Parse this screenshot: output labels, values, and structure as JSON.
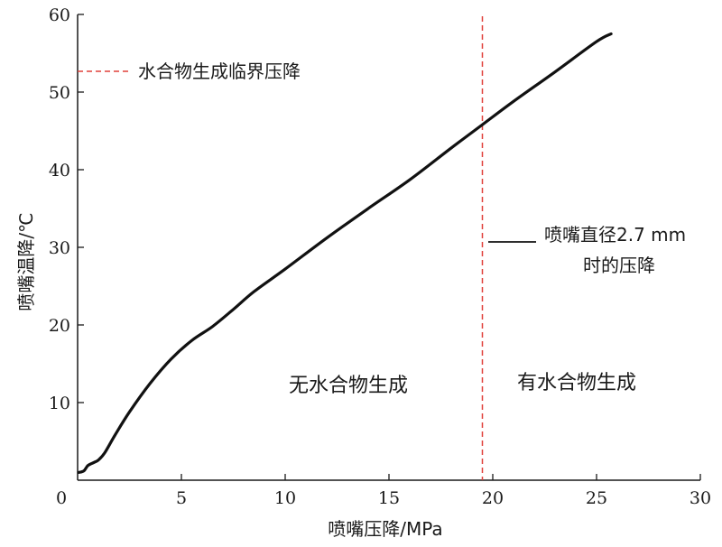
{
  "chart_data": {
    "type": "line",
    "xlabel": "喷嘴压降/MPa",
    "ylabel": "喷嘴温降/℃",
    "xlim": [
      0,
      30
    ],
    "ylim": [
      0,
      60
    ],
    "x_ticks": [
      "0",
      "5",
      "10",
      "15",
      "20",
      "25",
      "30"
    ],
    "y_ticks": [
      "10",
      "20",
      "30",
      "40",
      "50",
      "60"
    ],
    "grid": false,
    "series": [
      {
        "name": "喷嘴直径2.7 mm时的压降",
        "color": "#111111",
        "x": [
          0.05,
          0.3,
          0.5,
          0.8,
          1.0,
          1.3,
          1.8,
          2.5,
          3.5,
          4.5,
          5.5,
          6.5,
          7.5,
          8.5,
          10,
          12,
          14,
          16,
          18,
          19.5,
          21,
          23,
          25,
          25.7
        ],
        "y": [
          1.0,
          1.2,
          1.9,
          2.3,
          2.6,
          3.5,
          5.8,
          8.8,
          12.5,
          15.6,
          18.0,
          19.8,
          22.0,
          24.3,
          27.2,
          31.2,
          35.0,
          38.7,
          42.8,
          45.8,
          48.8,
          52.6,
          56.5,
          57.5
        ]
      }
    ],
    "reference_line": {
      "name": "水合物生成临界压降",
      "x": 19.5,
      "color": "#e0403a"
    },
    "regions": [
      {
        "label": "无水合物生成"
      },
      {
        "label": "有水合物生成"
      }
    ],
    "legend": {
      "series_label_line1": "喷嘴直径2.7 mm",
      "series_label_line2": "时的压降"
    }
  }
}
